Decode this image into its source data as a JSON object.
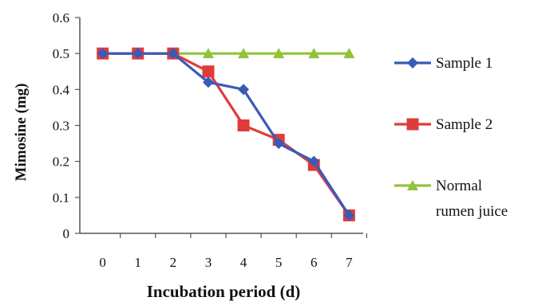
{
  "chart_data": {
    "type": "line",
    "xlabel": "Incubation period (d)",
    "ylabel": "Mimosine (mg)",
    "x": [
      0,
      1,
      2,
      3,
      4,
      5,
      6,
      7
    ],
    "xticks": [
      "0",
      "1",
      "2",
      "3",
      "4",
      "5",
      "6",
      "7"
    ],
    "ylim": [
      0,
      0.6
    ],
    "yticks": [
      "0",
      "0.1",
      "0.2",
      "0.3",
      "0.4",
      "0.5",
      "0.6"
    ],
    "grid": false,
    "legend_position": "right",
    "series": [
      {
        "name": "Sample 1",
        "values": [
          0.5,
          0.5,
          0.5,
          0.42,
          0.4,
          0.25,
          0.2,
          0.05
        ],
        "color": "#3a5bb5",
        "marker": "diamond"
      },
      {
        "name": "Sample 2",
        "values": [
          0.5,
          0.5,
          0.5,
          0.45,
          0.3,
          0.26,
          0.19,
          0.05
        ],
        "color": "#e03b3b",
        "marker": "square"
      },
      {
        "name_lines": [
          "Normal",
          "rumen juice"
        ],
        "values": [
          0.5,
          0.5,
          0.5,
          0.5,
          0.5,
          0.5,
          0.5,
          0.5
        ],
        "color": "#8fc43a",
        "marker": "triangle"
      }
    ]
  }
}
